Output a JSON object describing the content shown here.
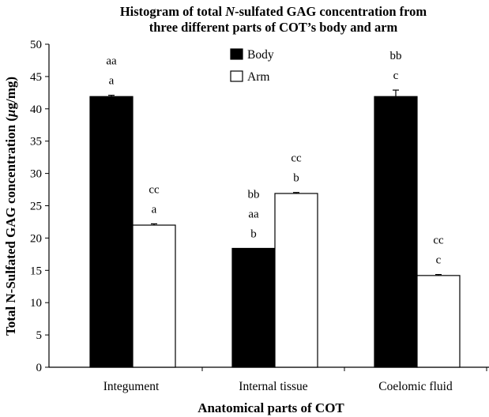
{
  "chart_data": {
    "type": "bar",
    "title_line1_before": "Histogram of total ",
    "title_line1_italic": "N",
    "title_line1_after": "-sulfated GAG concentration from",
    "title_line2": "three different parts of COT’s body and arm",
    "xlabel": "Anatomical parts of COT",
    "ylabel_before": "Total N-Sulfated GAG concentration (",
    "ylabel_mu": "μ",
    "ylabel_after": "g/mg)",
    "ylim": [
      0,
      50
    ],
    "yticks": [
      0,
      5,
      10,
      15,
      20,
      25,
      30,
      35,
      40,
      45,
      50
    ],
    "categories": [
      "Integument",
      "Internal tissue",
      "Coelomic fluid"
    ],
    "series": [
      {
        "name": "Body",
        "color": "#000000",
        "values": [
          41.9,
          18.4,
          41.9
        ],
        "errors": [
          0.2,
          0,
          1.0
        ],
        "annotations": [
          [
            "aa",
            "a"
          ],
          [
            "bb",
            "aa",
            "b"
          ],
          [
            "bb",
            "c"
          ]
        ]
      },
      {
        "name": "Arm",
        "color": "#ffffff",
        "values": [
          22.0,
          26.9,
          14.2
        ],
        "errors": [
          0.2,
          0.15,
          0.15
        ],
        "annotations": [
          [
            "cc",
            "a"
          ],
          [
            "cc",
            "b"
          ],
          [
            "cc",
            "c"
          ]
        ]
      }
    ],
    "legend_position": "top-center",
    "grid": false
  }
}
